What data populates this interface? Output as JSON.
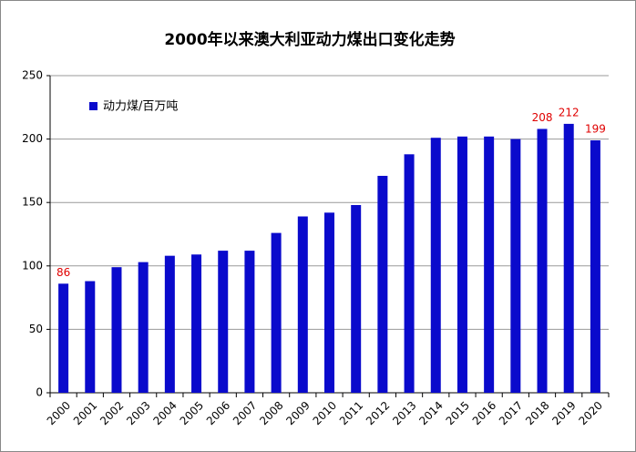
{
  "chart_data": {
    "type": "bar",
    "title": "2000年以来澳大利亚动力煤出口变化走势",
    "categories": [
      "2000",
      "2001",
      "2002",
      "2003",
      "2004",
      "2005",
      "2006",
      "2007",
      "2008",
      "2009",
      "2010",
      "2011",
      "2012",
      "2013",
      "2014",
      "2015",
      "2016",
      "2017",
      "2018",
      "2019",
      "2020"
    ],
    "series": [
      {
        "name": "动力煤/百万吨",
        "color": "#0a0acc",
        "values": [
          86,
          88,
          99,
          103,
          108,
          109,
          112,
          112,
          126,
          139,
          142,
          148,
          171,
          188,
          201,
          202,
          202,
          200,
          208,
          212,
          199
        ],
        "value_labels": [
          "86",
          null,
          null,
          null,
          null,
          null,
          null,
          null,
          null,
          null,
          null,
          null,
          null,
          null,
          null,
          null,
          null,
          null,
          "208",
          "212",
          "199"
        ]
      }
    ],
    "ylim": [
      0,
      250
    ],
    "yticks": [
      0,
      50,
      100,
      150,
      200,
      250
    ],
    "grid": true,
    "legend": "upper left"
  }
}
